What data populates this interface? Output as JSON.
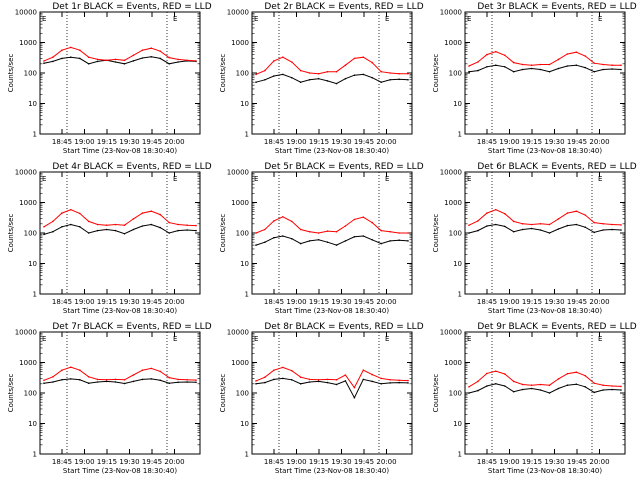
{
  "common": {
    "xlabel": "Start Time (23-Nov-08 18:30:40)",
    "ylabel": "Counts/sec",
    "x_tick_labels": [
      "18:45",
      "19:00",
      "19:15",
      "19:30",
      "19:45",
      "20:00"
    ],
    "y_tick_labels": [
      "1",
      "10",
      "100",
      "1000",
      "10000"
    ],
    "corner_label": "E"
  },
  "chart_data": [
    {
      "type": "line",
      "title": "Det 1r BLACK = Events, RED = LLD",
      "xlabel": "Start Time (23-Nov-08 18:30:40)",
      "ylabel": "Counts/sec",
      "ylim": [
        1,
        10000
      ],
      "log_y": true,
      "x_ticks": [
        "18:45",
        "19:00",
        "19:15",
        "19:30",
        "19:45",
        "20:00"
      ],
      "series": [
        {
          "name": "Events",
          "color": "#000000",
          "values": [
            210,
            240,
            300,
            330,
            300,
            200,
            240,
            260,
            230,
            200,
            250,
            310,
            340,
            300,
            200,
            230,
            250,
            240
          ]
        },
        {
          "name": "LLD",
          "color": "#ff0000",
          "values": [
            250,
            330,
            560,
            690,
            560,
            330,
            280,
            260,
            280,
            260,
            380,
            560,
            650,
            520,
            320,
            280,
            260,
            250
          ]
        }
      ]
    },
    {
      "type": "line",
      "title": "Det 2r BLACK = Events, RED = LLD",
      "xlabel": "Start Time (23-Nov-08 18:30:40)",
      "ylabel": "Counts/sec",
      "ylim": [
        1,
        10000
      ],
      "log_y": true,
      "x_ticks": [
        "18:45",
        "19:00",
        "19:15",
        "19:30",
        "19:45",
        "20:00"
      ],
      "series": [
        {
          "name": "Events",
          "color": "#000000",
          "values": [
            50,
            60,
            80,
            90,
            70,
            50,
            60,
            65,
            55,
            45,
            65,
            85,
            90,
            70,
            50,
            60,
            62,
            60
          ]
        },
        {
          "name": "LLD",
          "color": "#ff0000",
          "values": [
            90,
            120,
            250,
            330,
            230,
            120,
            100,
            95,
            110,
            110,
            180,
            300,
            330,
            220,
            110,
            100,
            95,
            95
          ]
        }
      ]
    },
    {
      "type": "line",
      "title": "Det 3r BLACK = Events, RED = LLD",
      "xlabel": "Start Time (23-Nov-08 18:30:40)",
      "ylabel": "Counts/sec",
      "ylim": [
        1,
        10000
      ],
      "log_y": true,
      "x_ticks": [
        "18:45",
        "19:00",
        "19:15",
        "19:30",
        "19:45",
        "20:00"
      ],
      "series": [
        {
          "name": "Events",
          "color": "#000000",
          "values": [
            110,
            120,
            160,
            180,
            160,
            110,
            130,
            140,
            130,
            110,
            140,
            170,
            180,
            150,
            110,
            130,
            135,
            130
          ]
        },
        {
          "name": "LLD",
          "color": "#ff0000",
          "values": [
            170,
            230,
            400,
            500,
            380,
            220,
            190,
            180,
            190,
            190,
            280,
            420,
            480,
            360,
            210,
            190,
            180,
            180
          ]
        }
      ]
    },
    {
      "type": "line",
      "title": "Det 4r BLACK = Events, RED = LLD",
      "xlabel": "Start Time (23-Nov-08 18:30:40)",
      "ylabel": "Counts/sec",
      "ylim": [
        1,
        10000
      ],
      "log_y": true,
      "x_ticks": [
        "18:45",
        "19:00",
        "19:15",
        "19:30",
        "19:45",
        "20:00"
      ],
      "series": [
        {
          "name": "Events",
          "color": "#000000",
          "values": [
            90,
            110,
            160,
            190,
            160,
            100,
            120,
            130,
            120,
            95,
            130,
            170,
            190,
            150,
            100,
            120,
            125,
            120
          ]
        },
        {
          "name": "LLD",
          "color": "#ff0000",
          "values": [
            160,
            240,
            450,
            580,
            440,
            240,
            190,
            180,
            190,
            180,
            290,
            450,
            520,
            400,
            220,
            190,
            180,
            175
          ]
        }
      ]
    },
    {
      "type": "line",
      "title": "Det 5r BLACK = Events, RED = LLD",
      "xlabel": "Start Time (23-Nov-08 18:30:40)",
      "ylabel": "Counts/sec",
      "ylim": [
        1,
        10000
      ],
      "log_y": true,
      "x_ticks": [
        "18:45",
        "19:00",
        "19:15",
        "19:30",
        "19:45",
        "20:00"
      ],
      "series": [
        {
          "name": "Events",
          "color": "#000000",
          "values": [
            40,
            50,
            70,
            80,
            65,
            45,
            55,
            60,
            50,
            40,
            55,
            75,
            80,
            60,
            45,
            55,
            58,
            55
          ]
        },
        {
          "name": "LLD",
          "color": "#ff0000",
          "values": [
            100,
            130,
            250,
            340,
            240,
            130,
            110,
            100,
            115,
            110,
            170,
            280,
            330,
            220,
            120,
            110,
            100,
            100
          ]
        }
      ]
    },
    {
      "type": "line",
      "title": "Det 6r BLACK = Events, RED = LLD",
      "xlabel": "Start Time (23-Nov-08 18:30:40)",
      "ylabel": "Counts/sec",
      "ylim": [
        1,
        10000
      ],
      "log_y": true,
      "x_ticks": [
        "18:45",
        "19:00",
        "19:15",
        "19:30",
        "19:45",
        "20:00"
      ],
      "series": [
        {
          "name": "Events",
          "color": "#000000",
          "values": [
            100,
            120,
            170,
            190,
            165,
            110,
            130,
            140,
            125,
            100,
            135,
            175,
            190,
            155,
            105,
            125,
            130,
            125
          ]
        },
        {
          "name": "LLD",
          "color": "#ff0000",
          "values": [
            180,
            250,
            450,
            580,
            430,
            240,
            200,
            190,
            200,
            190,
            290,
            450,
            520,
            390,
            220,
            200,
            190,
            185
          ]
        }
      ]
    },
    {
      "type": "line",
      "title": "Det 7r BLACK = Events, RED = LLD",
      "xlabel": "Start Time (23-Nov-08 18:30:40)",
      "ylabel": "Counts/sec",
      "ylim": [
        1,
        10000
      ],
      "log_y": true,
      "x_ticks": [
        "18:45",
        "19:00",
        "19:15",
        "19:30",
        "19:45",
        "20:00"
      ],
      "series": [
        {
          "name": "Events",
          "color": "#000000",
          "values": [
            210,
            230,
            270,
            290,
            270,
            210,
            230,
            240,
            230,
            205,
            240,
            280,
            290,
            260,
            210,
            225,
            230,
            225
          ]
        },
        {
          "name": "LLD",
          "color": "#ff0000",
          "values": [
            260,
            340,
            560,
            700,
            560,
            340,
            280,
            270,
            280,
            270,
            390,
            560,
            640,
            510,
            320,
            280,
            270,
            265
          ]
        }
      ]
    },
    {
      "type": "line",
      "title": "Det 8r BLACK = Events, RED = LLD",
      "xlabel": "Start Time (23-Nov-08 18:30:40)",
      "ylabel": "Counts/sec",
      "ylim": [
        1,
        10000
      ],
      "log_y": true,
      "x_ticks": [
        "18:45",
        "19:00",
        "19:15",
        "19:30",
        "19:45",
        "20:00"
      ],
      "series": [
        {
          "name": "Events",
          "color": "#000000",
          "values": [
            200,
            220,
            280,
            300,
            270,
            200,
            230,
            240,
            220,
            190,
            250,
            70,
            280,
            240,
            200,
            215,
            220,
            215
          ]
        },
        {
          "name": "LLD",
          "color": "#ff0000",
          "values": [
            250,
            330,
            560,
            690,
            540,
            330,
            280,
            270,
            280,
            270,
            390,
            150,
            560,
            400,
            300,
            270,
            260,
            255
          ]
        }
      ]
    },
    {
      "type": "line",
      "title": "Det 9r BLACK = Events, RED = LLD",
      "xlabel": "Start Time (23-Nov-08 18:30:40)",
      "ylabel": "Counts/sec",
      "ylim": [
        1,
        10000
      ],
      "log_y": true,
      "x_ticks": [
        "18:45",
        "19:00",
        "19:15",
        "19:30",
        "19:45",
        "20:00"
      ],
      "series": [
        {
          "name": "Events",
          "color": "#000000",
          "values": [
            100,
            120,
            170,
            200,
            170,
            110,
            130,
            140,
            125,
            100,
            140,
            180,
            195,
            160,
            105,
            125,
            130,
            125
          ]
        },
        {
          "name": "LLD",
          "color": "#ff0000",
          "values": [
            160,
            240,
            440,
            520,
            420,
            240,
            190,
            180,
            190,
            180,
            290,
            430,
            480,
            370,
            210,
            180,
            170,
            165
          ]
        }
      ]
    }
  ]
}
